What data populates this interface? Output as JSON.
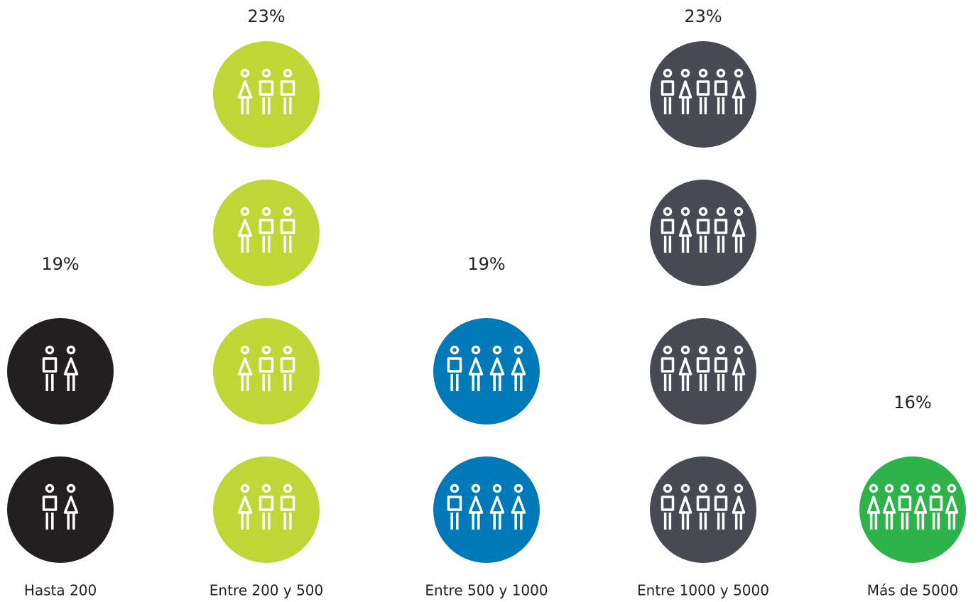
{
  "chart_data": {
    "type": "pictogram",
    "categories": [
      "Hasta 200",
      "Entre 200 y 500",
      "Entre 500 y 1000",
      "Entre 1000 y 5000",
      "Más de 5000"
    ],
    "values": [
      19,
      23,
      19,
      23,
      16
    ],
    "value_labels": [
      "19%",
      "23%",
      "19%",
      "23%",
      "16%"
    ],
    "colors": [
      "#231f20",
      "#bed737",
      "#0079b8",
      "#474a53",
      "#2db34a"
    ],
    "circles": [
      2,
      4,
      2,
      4,
      1
    ],
    "figures_per_circle": [
      2,
      3,
      4,
      5,
      6
    ]
  }
}
